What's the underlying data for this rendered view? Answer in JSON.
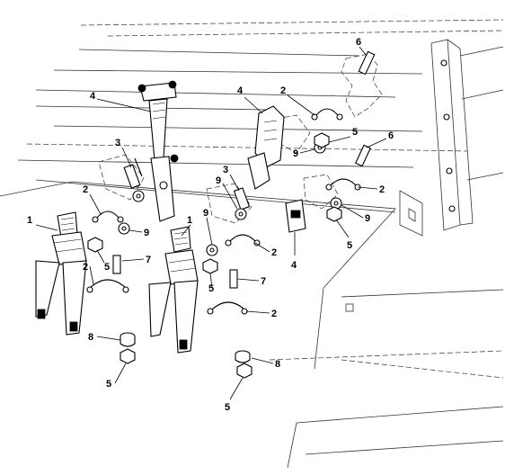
{
  "figure": {
    "callouts": [
      {
        "id": "c1",
        "label": "1"
      },
      {
        "id": "c2",
        "label": "1"
      },
      {
        "id": "c3",
        "label": "2"
      },
      {
        "id": "c4",
        "label": "2"
      },
      {
        "id": "c5",
        "label": "2"
      },
      {
        "id": "c6",
        "label": "2"
      },
      {
        "id": "c7",
        "label": "2"
      },
      {
        "id": "c8",
        "label": "2"
      },
      {
        "id": "c9",
        "label": "3"
      },
      {
        "id": "c10",
        "label": "3"
      },
      {
        "id": "c11",
        "label": "4"
      },
      {
        "id": "c12",
        "label": "4"
      },
      {
        "id": "c13",
        "label": "4"
      },
      {
        "id": "c14",
        "label": "5"
      },
      {
        "id": "c15",
        "label": "5"
      },
      {
        "id": "c16",
        "label": "5"
      },
      {
        "id": "c17",
        "label": "5"
      },
      {
        "id": "c18",
        "label": "5"
      },
      {
        "id": "c19",
        "label": "5"
      },
      {
        "id": "c20",
        "label": "6"
      },
      {
        "id": "c21",
        "label": "6"
      },
      {
        "id": "c22",
        "label": "7"
      },
      {
        "id": "c23",
        "label": "7"
      },
      {
        "id": "c24",
        "label": "8"
      },
      {
        "id": "c25",
        "label": "8"
      },
      {
        "id": "c26",
        "label": "9"
      },
      {
        "id": "c27",
        "label": "9"
      },
      {
        "id": "c28",
        "label": "9"
      },
      {
        "id": "c29",
        "label": "9"
      },
      {
        "id": "c30",
        "label": "9"
      }
    ]
  }
}
